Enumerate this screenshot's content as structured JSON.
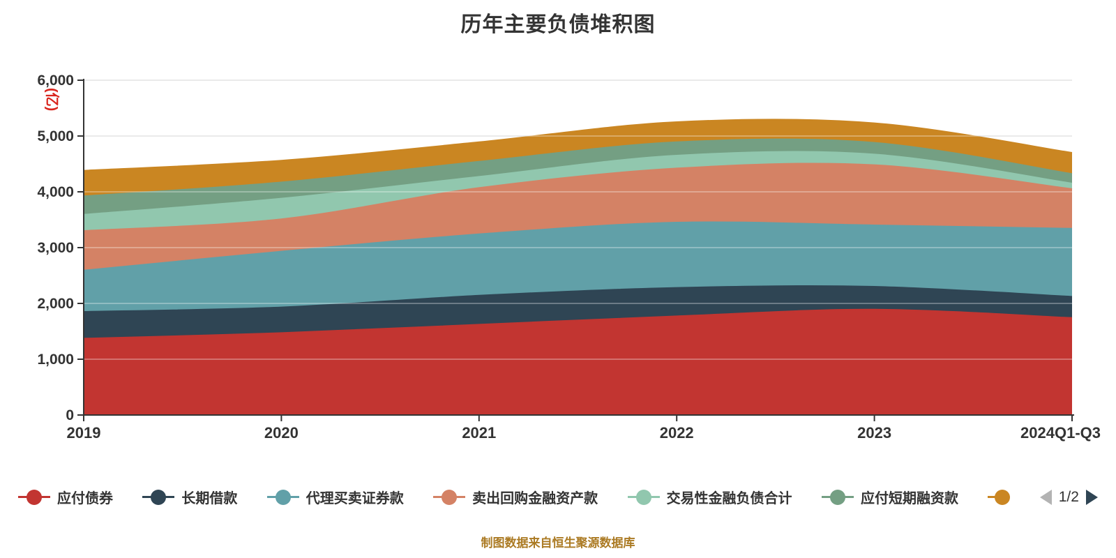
{
  "title": "历年主要负债堆积图",
  "footer": {
    "source_note": "制图数据来自恒生聚源数据库"
  },
  "legend": {
    "pager": {
      "label": "1/2",
      "prev_enabled": false,
      "next_enabled": true
    }
  },
  "y_axis": {
    "unit_label": "(亿)",
    "unit_color": "#d9251d",
    "tick_labels": [
      "6,000",
      "5,000",
      "4,000",
      "3,000",
      "2,000",
      "1,000",
      "0"
    ]
  },
  "chart_data": {
    "type": "area",
    "stacked": true,
    "smooth": true,
    "title": "历年主要负债堆积图",
    "xlabel": "",
    "ylabel": "(亿)",
    "ylim": [
      0,
      6000
    ],
    "y_tick_step": 1000,
    "grid": true,
    "legend_position": "bottom",
    "legend_paginated": "1/2 (7th series label clipped)",
    "categories": [
      "2019",
      "2020",
      "2021",
      "2022",
      "2023",
      "2024Q1-Q3"
    ],
    "series": [
      {
        "name": "应付债券",
        "color": "#c23531",
        "values": [
          1370,
          1470,
          1620,
          1770,
          1890,
          1740
        ]
      },
      {
        "name": "长期借款",
        "color": "#2f4554",
        "values": [
          480,
          460,
          520,
          510,
          410,
          380
        ]
      },
      {
        "name": "代理买卖证券款",
        "color": "#61a0a8",
        "values": [
          740,
          1000,
          1100,
          1170,
          1100,
          1220
        ]
      },
      {
        "name": "卖出回购金融资产款",
        "color": "#d48265",
        "values": [
          710,
          580,
          830,
          970,
          1080,
          710
        ]
      },
      {
        "name": "交易性金融负债合计",
        "color": "#91c7ae",
        "values": [
          290,
          370,
          200,
          230,
          190,
          100
        ]
      },
      {
        "name": "应付短期融资款",
        "color": "#749f83",
        "values": [
          330,
          290,
          270,
          240,
          210,
          170
        ]
      },
      {
        "name": "",
        "color": "#ca8622",
        "values": [
          460,
          390,
          350,
          360,
          350,
          380
        ]
      }
    ]
  },
  "style": {
    "axis_color": "#333333",
    "tick_label_color": "#333333",
    "grid_color": "#cccccc"
  }
}
